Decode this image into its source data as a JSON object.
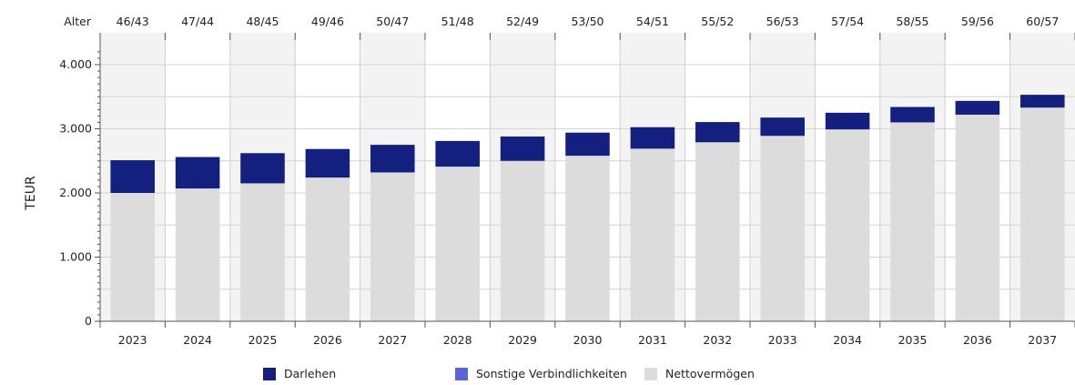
{
  "chart_data": {
    "type": "bar",
    "stacked": true,
    "ylabel": "TEUR",
    "ylim": [
      0,
      4200
    ],
    "yticks": [
      0,
      1000,
      2000,
      3000,
      4000
    ],
    "ytick_labels": [
      "0",
      "1.000",
      "2.000",
      "3.000",
      "4.000"
    ],
    "age_label": "Alter",
    "ages": [
      "46/43",
      "47/44",
      "48/45",
      "49/46",
      "50/47",
      "51/48",
      "52/49",
      "53/50",
      "54/51",
      "55/52",
      "56/53",
      "57/54",
      "58/55",
      "59/56",
      "60/57"
    ],
    "categories": [
      "2023",
      "2024",
      "2025",
      "2026",
      "2027",
      "2028",
      "2029",
      "2030",
      "2031",
      "2032",
      "2033",
      "2034",
      "2035",
      "2036",
      "2037"
    ],
    "series": [
      {
        "name": "Darlehen",
        "color": "#13207f",
        "values": [
          510,
          490,
          470,
          445,
          430,
          400,
          380,
          360,
          335,
          315,
          285,
          260,
          240,
          215,
          200
        ]
      },
      {
        "name": "Sonstige Verbindlichkeiten",
        "color": "#5a66d8",
        "values": [
          0,
          0,
          0,
          0,
          0,
          0,
          0,
          0,
          0,
          0,
          0,
          0,
          0,
          0,
          0
        ]
      },
      {
        "name": "Nettovermögen",
        "color": "#dcdcdc",
        "values": [
          2000,
          2070,
          2150,
          2240,
          2320,
          2410,
          2500,
          2580,
          2690,
          2790,
          2890,
          2990,
          3100,
          3220,
          3330
        ]
      }
    ],
    "grid": true,
    "legend_position": "bottom"
  }
}
